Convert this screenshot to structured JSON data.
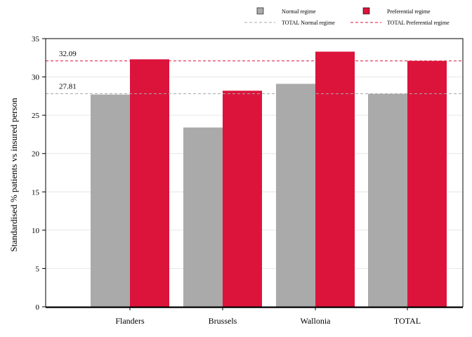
{
  "colors": {
    "normal": "#aaaaaa",
    "preferential": "#dc143c",
    "normal_ref": "#a8a8a8",
    "preferential_ref": "#dc143c",
    "grid": "#e6e6e6",
    "axis": "#000000"
  },
  "chart_data": {
    "type": "bar",
    "categories": [
      "Flanders",
      "Brussels",
      "Wallonia",
      "TOTAL"
    ],
    "series": [
      {
        "name": "Normal regime",
        "values": [
          27.7,
          23.4,
          29.1,
          27.8
        ]
      },
      {
        "name": "Preferential regime",
        "values": [
          32.3,
          28.2,
          33.3,
          32.1
        ]
      }
    ],
    "reference_lines": [
      {
        "name": "TOTAL Normal regime",
        "value": 27.81,
        "label": "27.81",
        "style": "dashed"
      },
      {
        "name": "TOTAL Preferential regime",
        "value": 32.09,
        "label": "32.09",
        "style": "dashed"
      }
    ],
    "ylabel": "Standardised % patients vs insured person",
    "xlabel": "",
    "ylim": [
      0,
      35
    ],
    "yticks": [
      0,
      5,
      10,
      15,
      20,
      25,
      30,
      35
    ],
    "grid": true,
    "legend_position": "top"
  }
}
